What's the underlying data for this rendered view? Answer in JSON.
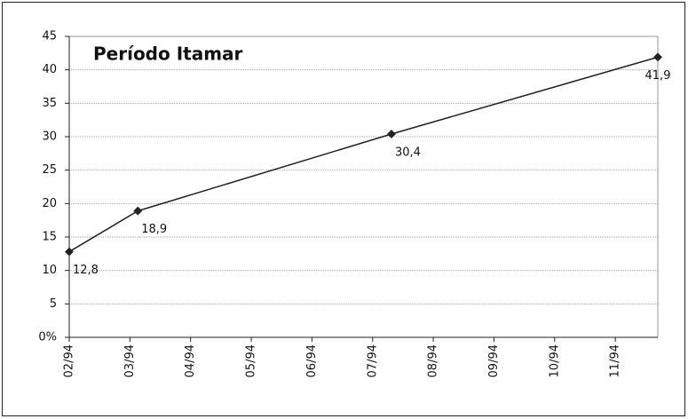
{
  "chart_data": {
    "type": "line",
    "title": "Período Itamar",
    "x": [
      0,
      1.13,
      5.31,
      9.7
    ],
    "series": [
      {
        "name": "Período Itamar",
        "color": "#222222",
        "values": [
          12.8,
          18.9,
          30.4,
          41.9
        ],
        "value_labels": [
          "12,8",
          "18,9",
          "30,4",
          "41,9"
        ]
      }
    ],
    "xlim": [
      0,
      9.7
    ],
    "xticks": [
      {
        "value": 0,
        "label": "02/94"
      },
      {
        "value": 1,
        "label": "03/94"
      },
      {
        "value": 2,
        "label": "04/94"
      },
      {
        "value": 3,
        "label": "05/94"
      },
      {
        "value": 4,
        "label": "06/94"
      },
      {
        "value": 5,
        "label": "07/94"
      },
      {
        "value": 6,
        "label": "08/94"
      },
      {
        "value": 7,
        "label": "09/94"
      },
      {
        "value": 8,
        "label": "10/94"
      },
      {
        "value": 9,
        "label": "11/94"
      }
    ],
    "ylim": [
      0,
      45
    ],
    "yticks": [
      {
        "value": 0,
        "label": "0%"
      },
      5,
      10,
      15,
      20,
      25,
      30,
      35,
      40,
      45
    ],
    "grid": true
  }
}
